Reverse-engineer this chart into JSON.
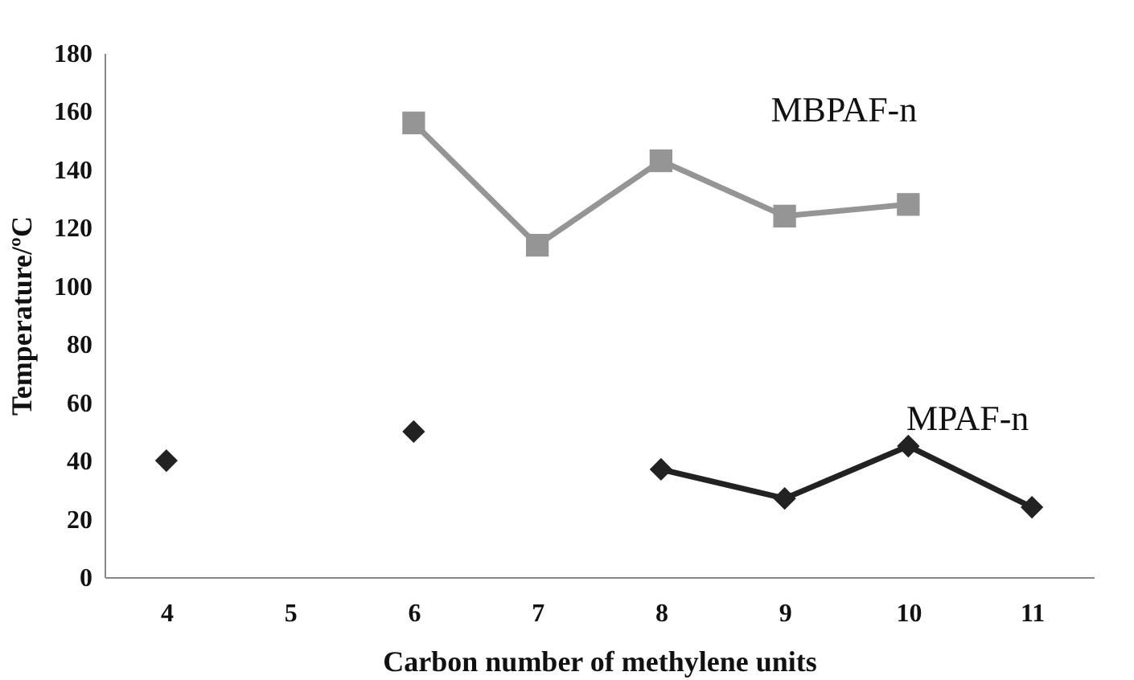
{
  "chart_data": {
    "type": "line",
    "xlabel": "Carbon number of methylene units",
    "ylabel": "Temperature/ºC",
    "categories": [
      "4",
      "5",
      "6",
      "7",
      "8",
      "9",
      "10",
      "11"
    ],
    "ylim": [
      0,
      180
    ],
    "yticks": [
      0,
      20,
      40,
      60,
      80,
      100,
      120,
      140,
      160,
      180
    ],
    "line_style": "solid",
    "series": [
      {
        "name": "MBPAF-n",
        "color": "#959595",
        "marker": "square",
        "values": [
          null,
          null,
          156,
          114,
          143,
          124,
          128,
          null
        ]
      },
      {
        "name": "MPAF-n",
        "color": "#222222",
        "marker": "diamond",
        "values": [
          40,
          null,
          50,
          null,
          37,
          27,
          45,
          24
        ]
      }
    ]
  }
}
